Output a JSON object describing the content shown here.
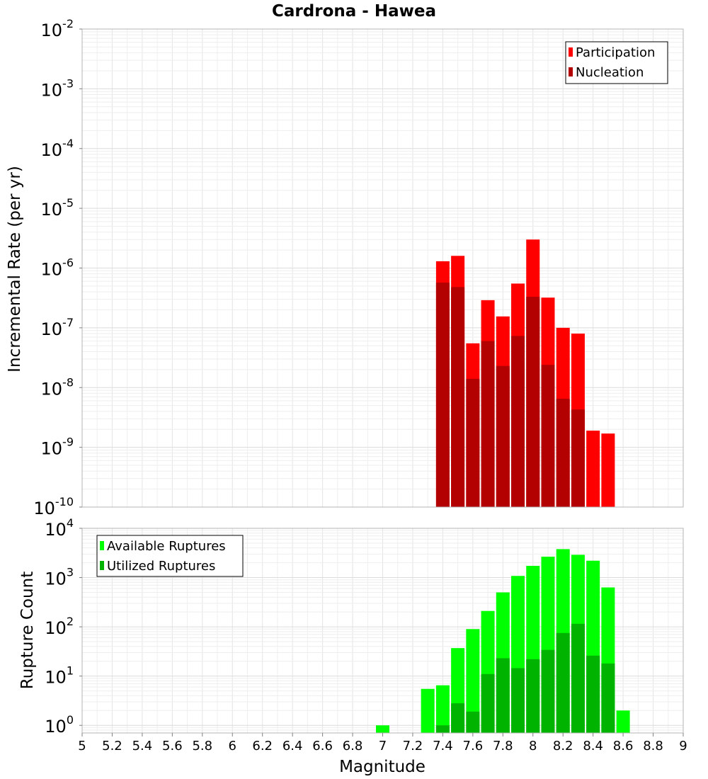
{
  "title": "Cardrona - Hawea",
  "chart_data": [
    {
      "type": "bar",
      "title": "Cardrona - Hawea",
      "xlabel": "",
      "ylabel": "Incremental Rate (per yr)",
      "yscale": "log",
      "ylim": [
        1e-10,
        0.01
      ],
      "xlim": [
        5,
        9
      ],
      "legend_position": "top-right",
      "x": [
        7.4,
        7.5,
        7.6,
        7.7,
        7.8,
        7.9,
        8.0,
        8.1,
        8.2,
        8.3,
        8.4,
        8.5
      ],
      "series": [
        {
          "name": "Participation",
          "color": "#ff0000",
          "values": [
            1.3e-06,
            1.6e-06,
            5.5e-08,
            2.9e-07,
            1.55e-07,
            5.5e-07,
            3e-06,
            3.2e-07,
            1e-07,
            8e-08,
            1.9e-09,
            1.7e-09
          ]
        },
        {
          "name": "Nucleation",
          "color": "#b30000",
          "values": [
            5.7e-07,
            4.8e-07,
            1.4e-08,
            6e-08,
            2.3e-08,
            7.3e-08,
            3.3e-07,
            2.4e-08,
            6.5e-09,
            4.3e-09,
            null,
            null
          ]
        }
      ]
    },
    {
      "type": "bar",
      "title": "",
      "xlabel": "Magnitude",
      "ylabel": "Rupture Count",
      "yscale": "log",
      "ylim": [
        0.7,
        10000
      ],
      "xlim": [
        5,
        9
      ],
      "legend_position": "top-left",
      "x": [
        7.0,
        7.1,
        7.2,
        7.3,
        7.4,
        7.5,
        7.6,
        7.7,
        7.8,
        7.9,
        8.0,
        8.1,
        8.2,
        8.3,
        8.4,
        8.5,
        8.6
      ],
      "series": [
        {
          "name": "Available Ruptures",
          "color": "#00ff00",
          "values": [
            1,
            null,
            null,
            5.5,
            6.5,
            37,
            90,
            210,
            500,
            1080,
            1730,
            2650,
            3780,
            2900,
            2200,
            630,
            2
          ]
        },
        {
          "name": "Utilized Ruptures",
          "color": "#00b300",
          "values": [
            null,
            null,
            null,
            null,
            1,
            2.8,
            1.9,
            11,
            23,
            14.5,
            22,
            34,
            75,
            115,
            26,
            18,
            null
          ]
        }
      ]
    }
  ],
  "x_ticks": [
    "5",
    "5.2",
    "5.4",
    "5.6",
    "5.8",
    "6",
    "6.2",
    "6.4",
    "6.6",
    "6.8",
    "7",
    "7.2",
    "7.4",
    "7.6",
    "7.8",
    "8",
    "8.2",
    "8.4",
    "8.6",
    "8.8",
    "9"
  ],
  "top_y_exponents": [
    "-2",
    "-3",
    "-4",
    "-5",
    "-6",
    "-7",
    "-8",
    "-9",
    "-10"
  ],
  "bottom_y_exponents": [
    "4",
    "3",
    "2",
    "1",
    "0"
  ],
  "tick_base": "10"
}
